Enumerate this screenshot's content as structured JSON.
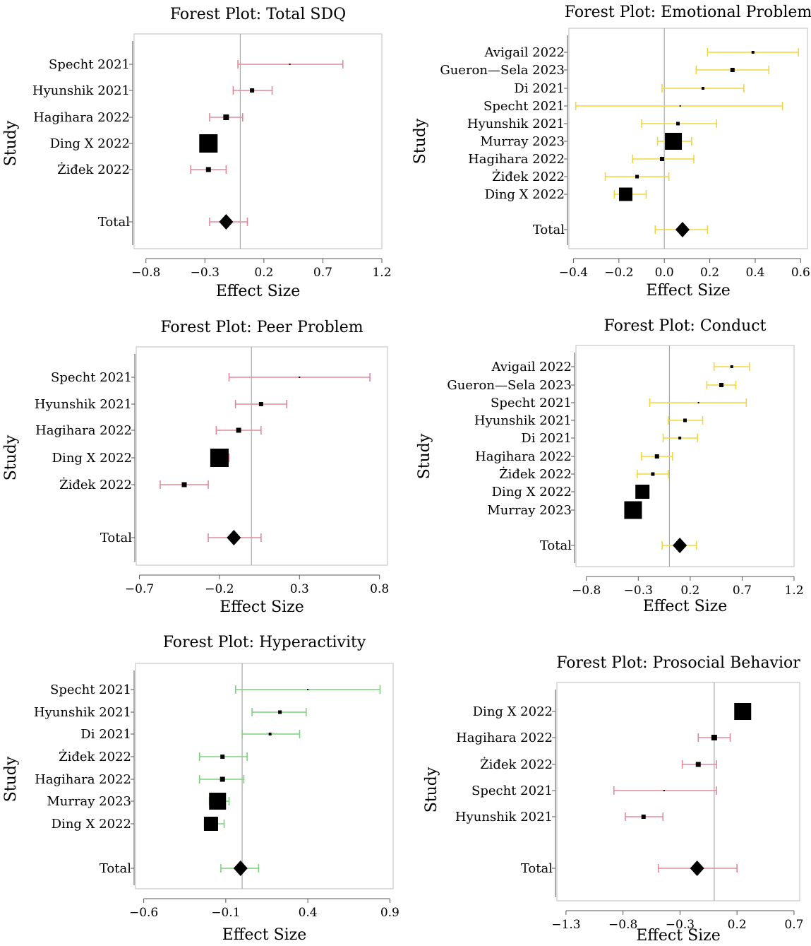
{
  "chart_data": [
    {
      "type": "forest",
      "title": "Forest Plot: Total SDQ",
      "xlabel": "Effect Size",
      "ylabel": "Study",
      "xlim": [
        -0.9,
        1.2
      ],
      "ticks": [
        -0.8,
        -0.3,
        0.2,
        0.7,
        1.2
      ],
      "tick_labels": [
        "−0.8",
        "−0.3",
        "0.2",
        "0.7",
        "1.2"
      ],
      "color": "#e08a99",
      "studies": [
        {
          "label": "Specht 2021",
          "est": 0.42,
          "lo": -0.02,
          "hi": 0.87,
          "w": 2
        },
        {
          "label": "Hyunshik 2021",
          "est": 0.1,
          "lo": -0.06,
          "hi": 0.27,
          "w": 6
        },
        {
          "label": "Hagihara 2022",
          "est": -0.12,
          "lo": -0.26,
          "hi": 0.02,
          "w": 8
        },
        {
          "label": "Ding X 2022",
          "est": -0.27,
          "lo": -0.3,
          "hi": -0.24,
          "w": 26
        },
        {
          "label": "Żiđek 2022",
          "est": -0.27,
          "lo": -0.42,
          "hi": -0.12,
          "w": 7
        }
      ],
      "total": {
        "label": "Total",
        "est": -0.12,
        "lo": -0.26,
        "hi": 0.06
      }
    },
    {
      "type": "forest",
      "title": "Forest Plot: Emotional Problem",
      "xlabel": "Effect Size",
      "ylabel": "Study",
      "xlim": [
        -0.42,
        0.63
      ],
      "ticks": [
        -0.4,
        -0.2,
        0.0,
        0.2,
        0.4,
        0.6
      ],
      "tick_labels": [
        "−0.4",
        "−0.2",
        "0.0",
        "0.2",
        "0.4",
        "0.6"
      ],
      "color": "#f3d53f",
      "studies": [
        {
          "label": "Avigail 2022",
          "est": 0.39,
          "lo": 0.19,
          "hi": 0.59,
          "w": 4
        },
        {
          "label": "Gueron—Sela 2023",
          "est": 0.3,
          "lo": 0.14,
          "hi": 0.46,
          "w": 6
        },
        {
          "label": "Di 2021",
          "est": 0.17,
          "lo": -0.01,
          "hi": 0.35,
          "w": 4
        },
        {
          "label": "Specht 2021",
          "est": 0.07,
          "lo": -0.39,
          "hi": 0.52,
          "w": 2
        },
        {
          "label": "Hyunshik 2021",
          "est": 0.06,
          "lo": -0.1,
          "hi": 0.23,
          "w": 5
        },
        {
          "label": "Murray 2023",
          "est": 0.04,
          "lo": -0.03,
          "hi": 0.12,
          "w": 24
        },
        {
          "label": "Hagihara 2022",
          "est": -0.01,
          "lo": -0.14,
          "hi": 0.13,
          "w": 6
        },
        {
          "label": "Żiđek 2022",
          "est": -0.12,
          "lo": -0.26,
          "hi": 0.02,
          "w": 5
        },
        {
          "label": "Ding X 2022",
          "est": -0.17,
          "lo": -0.22,
          "hi": -0.08,
          "w": 19
        }
      ],
      "total": {
        "label": "Total",
        "est": 0.08,
        "lo": -0.04,
        "hi": 0.19
      }
    },
    {
      "type": "forest",
      "title": "Forest Plot: Peer Problem",
      "xlabel": "Effect Size",
      "ylabel": "Study",
      "xlim": [
        -0.72,
        0.85
      ],
      "ticks": [
        -0.7,
        -0.2,
        0.3,
        0.8
      ],
      "tick_labels": [
        "−0.7",
        "−0.2",
        "0.3",
        "0.8"
      ],
      "color": "#e08a99",
      "studies": [
        {
          "label": "Specht 2021",
          "est": 0.3,
          "lo": -0.14,
          "hi": 0.74,
          "w": 2
        },
        {
          "label": "Hyunshik 2021",
          "est": 0.06,
          "lo": -0.1,
          "hi": 0.22,
          "w": 6
        },
        {
          "label": "Hagihara 2022",
          "est": -0.08,
          "lo": -0.22,
          "hi": 0.06,
          "w": 7
        },
        {
          "label": "Ding X 2022",
          "est": -0.2,
          "lo": -0.23,
          "hi": -0.14,
          "w": 26
        },
        {
          "label": "Żiđek 2022",
          "est": -0.42,
          "lo": -0.57,
          "hi": -0.27,
          "w": 7
        }
      ],
      "total": {
        "label": "Total",
        "est": -0.11,
        "lo": -0.27,
        "hi": 0.06
      }
    },
    {
      "type": "forest",
      "title": "Forest Plot: Conduct",
      "xlabel": "Effect Size",
      "ylabel": "Study",
      "xlim": [
        -0.9,
        1.2
      ],
      "ticks": [
        -0.8,
        -0.3,
        0.2,
        0.7,
        1.2
      ],
      "tick_labels": [
        "−0.8",
        "−0.3",
        "0.2",
        "0.7",
        "1.2"
      ],
      "color": "#f3d53f",
      "studies": [
        {
          "label": "Avigail 2022",
          "est": 0.6,
          "lo": 0.43,
          "hi": 0.77,
          "w": 4
        },
        {
          "label": "Gueron—Sela 2023",
          "est": 0.5,
          "lo": 0.36,
          "hi": 0.64,
          "w": 6
        },
        {
          "label": "Specht 2021",
          "est": 0.28,
          "lo": -0.19,
          "hi": 0.74,
          "w": 2
        },
        {
          "label": "Hyunshik 2021",
          "est": 0.15,
          "lo": -0.01,
          "hi": 0.32,
          "w": 5
        },
        {
          "label": "Di 2021",
          "est": 0.1,
          "lo": -0.06,
          "hi": 0.27,
          "w": 4
        },
        {
          "label": "Hagihara 2022",
          "est": -0.12,
          "lo": -0.27,
          "hi": 0.03,
          "w": 6
        },
        {
          "label": "Żiđek 2022",
          "est": -0.16,
          "lo": -0.31,
          "hi": -0.01,
          "w": 5
        },
        {
          "label": "Ding X 2022",
          "est": -0.26,
          "lo": -0.3,
          "hi": -0.2,
          "w": 20
        },
        {
          "label": "Murray 2023",
          "est": -0.35,
          "lo": -0.4,
          "hi": -0.3,
          "w": 25
        }
      ],
      "total": {
        "label": "Total",
        "est": 0.1,
        "lo": -0.07,
        "hi": 0.26
      }
    },
    {
      "type": "forest",
      "title": "Forest Plot: Hyperactivity",
      "xlabel": "Effect Size",
      "ylabel": "Study",
      "xlim": [
        -0.65,
        0.92
      ],
      "ticks": [
        -0.6,
        -0.1,
        0.4,
        0.9
      ],
      "tick_labels": [
        "−0.6",
        "−0.1",
        "0.4",
        "0.9"
      ],
      "color": "#7fd17f",
      "studies": [
        {
          "label": "Specht 2021",
          "est": 0.4,
          "lo": -0.04,
          "hi": 0.84,
          "w": 2
        },
        {
          "label": "Hyunshik 2021",
          "est": 0.23,
          "lo": 0.06,
          "hi": 0.39,
          "w": 5
        },
        {
          "label": "Di 2021",
          "est": 0.17,
          "lo": 0.0,
          "hi": 0.35,
          "w": 4
        },
        {
          "label": "Żiđek 2022",
          "est": -0.12,
          "lo": -0.26,
          "hi": 0.03,
          "w": 6
        },
        {
          "label": "Hagihara 2022",
          "est": -0.12,
          "lo": -0.26,
          "hi": 0.01,
          "w": 7
        },
        {
          "label": "Murray 2023",
          "est": -0.15,
          "lo": -0.2,
          "hi": -0.08,
          "w": 24
        },
        {
          "label": "Ding X 2022",
          "est": -0.19,
          "lo": -0.23,
          "hi": -0.11,
          "w": 20
        }
      ],
      "total": {
        "label": "Total",
        "est": -0.01,
        "lo": -0.13,
        "hi": 0.1
      }
    },
    {
      "type": "forest",
      "title": "Forest Plot: Prosocial Behavior",
      "xlabel": "Effect Size",
      "ylabel": "Study",
      "xlim": [
        -1.38,
        0.75
      ],
      "ticks": [
        -1.3,
        -0.8,
        -0.3,
        0.2,
        0.7
      ],
      "tick_labels": [
        "−1.3",
        "−0.8",
        "−0.3",
        "0.2",
        "0.7"
      ],
      "color": "#e08a99",
      "studies": [
        {
          "label": "Ding X 2022",
          "est": 0.25,
          "lo": 0.21,
          "hi": 0.31,
          "w": 24
        },
        {
          "label": "Hagihara 2022",
          "est": 0.0,
          "lo": -0.14,
          "hi": 0.14,
          "w": 8
        },
        {
          "label": "Żiđek 2022",
          "est": -0.14,
          "lo": -0.28,
          "hi": 0.02,
          "w": 7
        },
        {
          "label": "Specht 2021",
          "est": -0.44,
          "lo": -0.88,
          "hi": 0.02,
          "w": 2
        },
        {
          "label": "Hyunshik 2021",
          "est": -0.62,
          "lo": -0.78,
          "hi": -0.45,
          "w": 6
        }
      ],
      "total": {
        "label": "Total",
        "est": -0.15,
        "lo": -0.49,
        "hi": 0.2
      }
    }
  ]
}
